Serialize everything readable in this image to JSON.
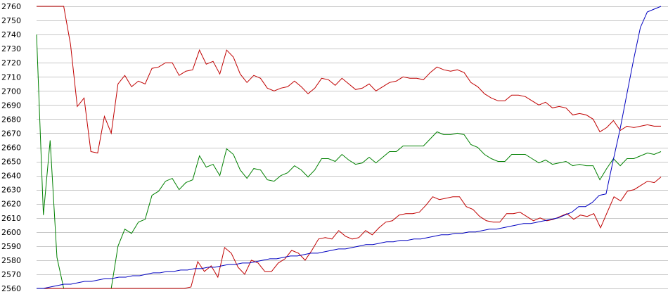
{
  "chart_data": {
    "type": "line",
    "title": "",
    "xlabel": "",
    "ylabel": "",
    "ylim": [
      2560,
      2760
    ],
    "yticks": [
      2560,
      2570,
      2580,
      2590,
      2600,
      2610,
      2620,
      2630,
      2640,
      2650,
      2660,
      2670,
      2680,
      2690,
      2700,
      2710,
      2720,
      2730,
      2740,
      2750,
      2760
    ],
    "grid": true,
    "legend": "none",
    "series": [
      {
        "color": "#c00000",
        "values": [
          2760,
          2760,
          2760,
          2760,
          2760,
          2733,
          2689,
          2695,
          2657,
          2656,
          2682,
          2670,
          2705,
          2711,
          2703,
          2707,
          2705,
          2716,
          2717,
          2720,
          2720,
          2711,
          2714,
          2715,
          2729,
          2719,
          2721,
          2712,
          2729,
          2724,
          2712,
          2706,
          2711,
          2709,
          2702,
          2700,
          2702,
          2703,
          2707,
          2703,
          2698,
          2702,
          2709,
          2708,
          2704,
          2709,
          2705,
          2701,
          2702,
          2705,
          2700,
          2703,
          2706,
          2707,
          2710,
          2709,
          2709,
          2708,
          2713,
          2717,
          2715,
          2714,
          2715,
          2713,
          2706,
          2703,
          2698,
          2695,
          2693,
          2693,
          2697,
          2697,
          2696,
          2693,
          2690,
          2692,
          2688,
          2689,
          2688,
          2683,
          2684,
          2683,
          2680,
          2671,
          2674,
          2679,
          2672,
          2675,
          2674,
          2675,
          2676,
          2675,
          2675
        ]
      },
      {
        "color": "#008000",
        "values": [
          2740,
          2612,
          2665,
          2582,
          2560,
          2560,
          2560,
          2560,
          2560,
          2560,
          2560,
          2560,
          2590,
          2602,
          2599,
          2607,
          2609,
          2626,
          2629,
          2636,
          2638,
          2630,
          2635,
          2637,
          2654,
          2646,
          2648,
          2640,
          2659,
          2655,
          2644,
          2638,
          2645,
          2644,
          2637,
          2636,
          2640,
          2642,
          2647,
          2644,
          2639,
          2644,
          2652,
          2652,
          2650,
          2655,
          2651,
          2648,
          2649,
          2653,
          2649,
          2653,
          2657,
          2657,
          2661,
          2661,
          2661,
          2661,
          2666,
          2671,
          2669,
          2669,
          2670,
          2669,
          2662,
          2660,
          2655,
          2652,
          2650,
          2650,
          2655,
          2655,
          2655,
          2652,
          2649,
          2651,
          2648,
          2649,
          2650,
          2647,
          2648,
          2647,
          2647,
          2637,
          2645,
          2652,
          2647,
          2652,
          2652,
          2654,
          2656,
          2655,
          2657
        ]
      },
      {
        "color": "#c00000",
        "values": [
          2560,
          2560,
          2560,
          2560,
          2560,
          2560,
          2560,
          2560,
          2560,
          2560,
          2560,
          2560,
          2560,
          2560,
          2560,
          2560,
          2560,
          2560,
          2560,
          2560,
          2560,
          2560,
          2560,
          2561,
          2579,
          2572,
          2576,
          2568,
          2589,
          2585,
          2575,
          2570,
          2580,
          2578,
          2572,
          2572,
          2578,
          2581,
          2587,
          2585,
          2580,
          2587,
          2595,
          2596,
          2595,
          2601,
          2597,
          2595,
          2596,
          2601,
          2598,
          2603,
          2607,
          2608,
          2612,
          2613,
          2613,
          2614,
          2619,
          2625,
          2623,
          2624,
          2625,
          2625,
          2618,
          2616,
          2611,
          2608,
          2607,
          2607,
          2613,
          2613,
          2614,
          2611,
          2608,
          2610,
          2608,
          2609,
          2611,
          2613,
          2609,
          2612,
          2611,
          2613,
          2603,
          2614,
          2625,
          2622,
          2629,
          2630,
          2633,
          2636,
          2635,
          2639
        ]
      },
      {
        "color": "#0000c0",
        "values": [
          2560,
          2560,
          2561,
          2562,
          2563,
          2563,
          2564,
          2565,
          2565,
          2566,
          2567,
          2567,
          2568,
          2568,
          2569,
          2569,
          2570,
          2571,
          2571,
          2572,
          2572,
          2573,
          2573,
          2574,
          2574,
          2575,
          2575,
          2576,
          2577,
          2577,
          2578,
          2578,
          2579,
          2580,
          2581,
          2581,
          2582,
          2583,
          2583,
          2584,
          2585,
          2585,
          2586,
          2587,
          2588,
          2588,
          2589,
          2590,
          2591,
          2591,
          2592,
          2593,
          2593,
          2594,
          2594,
          2595,
          2595,
          2596,
          2597,
          2598,
          2598,
          2599,
          2599,
          2600,
          2600,
          2601,
          2602,
          2602,
          2603,
          2604,
          2605,
          2606,
          2606,
          2607,
          2608,
          2609,
          2610,
          2612,
          2614,
          2618,
          2618,
          2621,
          2626,
          2627,
          2650,
          2672,
          2697,
          2722,
          2745,
          2756,
          2758,
          2760
        ]
      }
    ]
  }
}
